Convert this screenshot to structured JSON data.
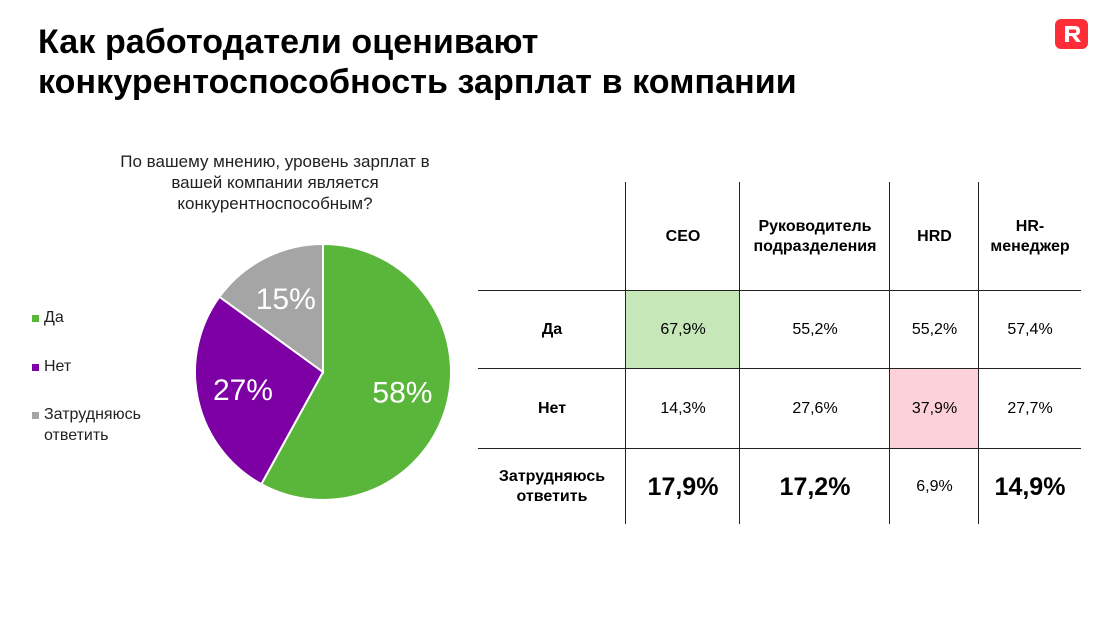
{
  "slide": {
    "title_line1": "Как работодатели оценивают",
    "title_line2": "конкурентоспособность зарплат в компании",
    "logo_letter": "R",
    "brand_color": "#ff2d37"
  },
  "chart_data": [
    {
      "type": "pie",
      "title": "По вашему мнению, уровень зарплат в вашей компании является конкурентноспособным?",
      "title_lines": [
        "По вашему мнению, уровень зарплат в",
        "вашей компании является",
        "конкурентноспособным?"
      ],
      "slices": [
        {
          "label": "Да",
          "value": 58,
          "display": "58%",
          "color": "#5ab63a"
        },
        {
          "label": "Нет",
          "value": 27,
          "display": "27%",
          "color": "#7c00a4"
        },
        {
          "label": "Затрудняюсь ответить",
          "value": 15,
          "display": "15%",
          "color": "#a5a5a5"
        }
      ],
      "legend": [
        {
          "label": "Да",
          "color": "#5ab63a"
        },
        {
          "label": "Нет",
          "color": "#7c00a4"
        },
        {
          "label_line1": "Затрудняюсь",
          "label_line2": "ответить",
          "color": "#a5a5a5"
        }
      ],
      "legend_position": "left"
    },
    {
      "type": "table",
      "columns": [
        "CEO",
        "Руководитель подразделения",
        "HRD",
        "HR-менеджер"
      ],
      "column_lines": [
        [
          "CEO"
        ],
        [
          "Руководитель",
          "подразделения"
        ],
        [
          "HRD"
        ],
        [
          "HR-",
          "менеджер"
        ]
      ],
      "rows": [
        {
          "label_lines": [
            "Да"
          ],
          "values": [
            "67,9%",
            "55,2%",
            "55,2%",
            "57,4%"
          ]
        },
        {
          "label_lines": [
            "Нет"
          ],
          "values": [
            "14,3%",
            "27,6%",
            "37,9%",
            "27,7%"
          ]
        },
        {
          "label_lines": [
            "Затрудняюсь",
            "ответить"
          ],
          "values": [
            "17,9%",
            "17,2%",
            "6,9%",
            "14,9%"
          ]
        }
      ],
      "highlights": {
        "green": "#c6e8b8",
        "pink": "#fdd1d9"
      }
    }
  ]
}
